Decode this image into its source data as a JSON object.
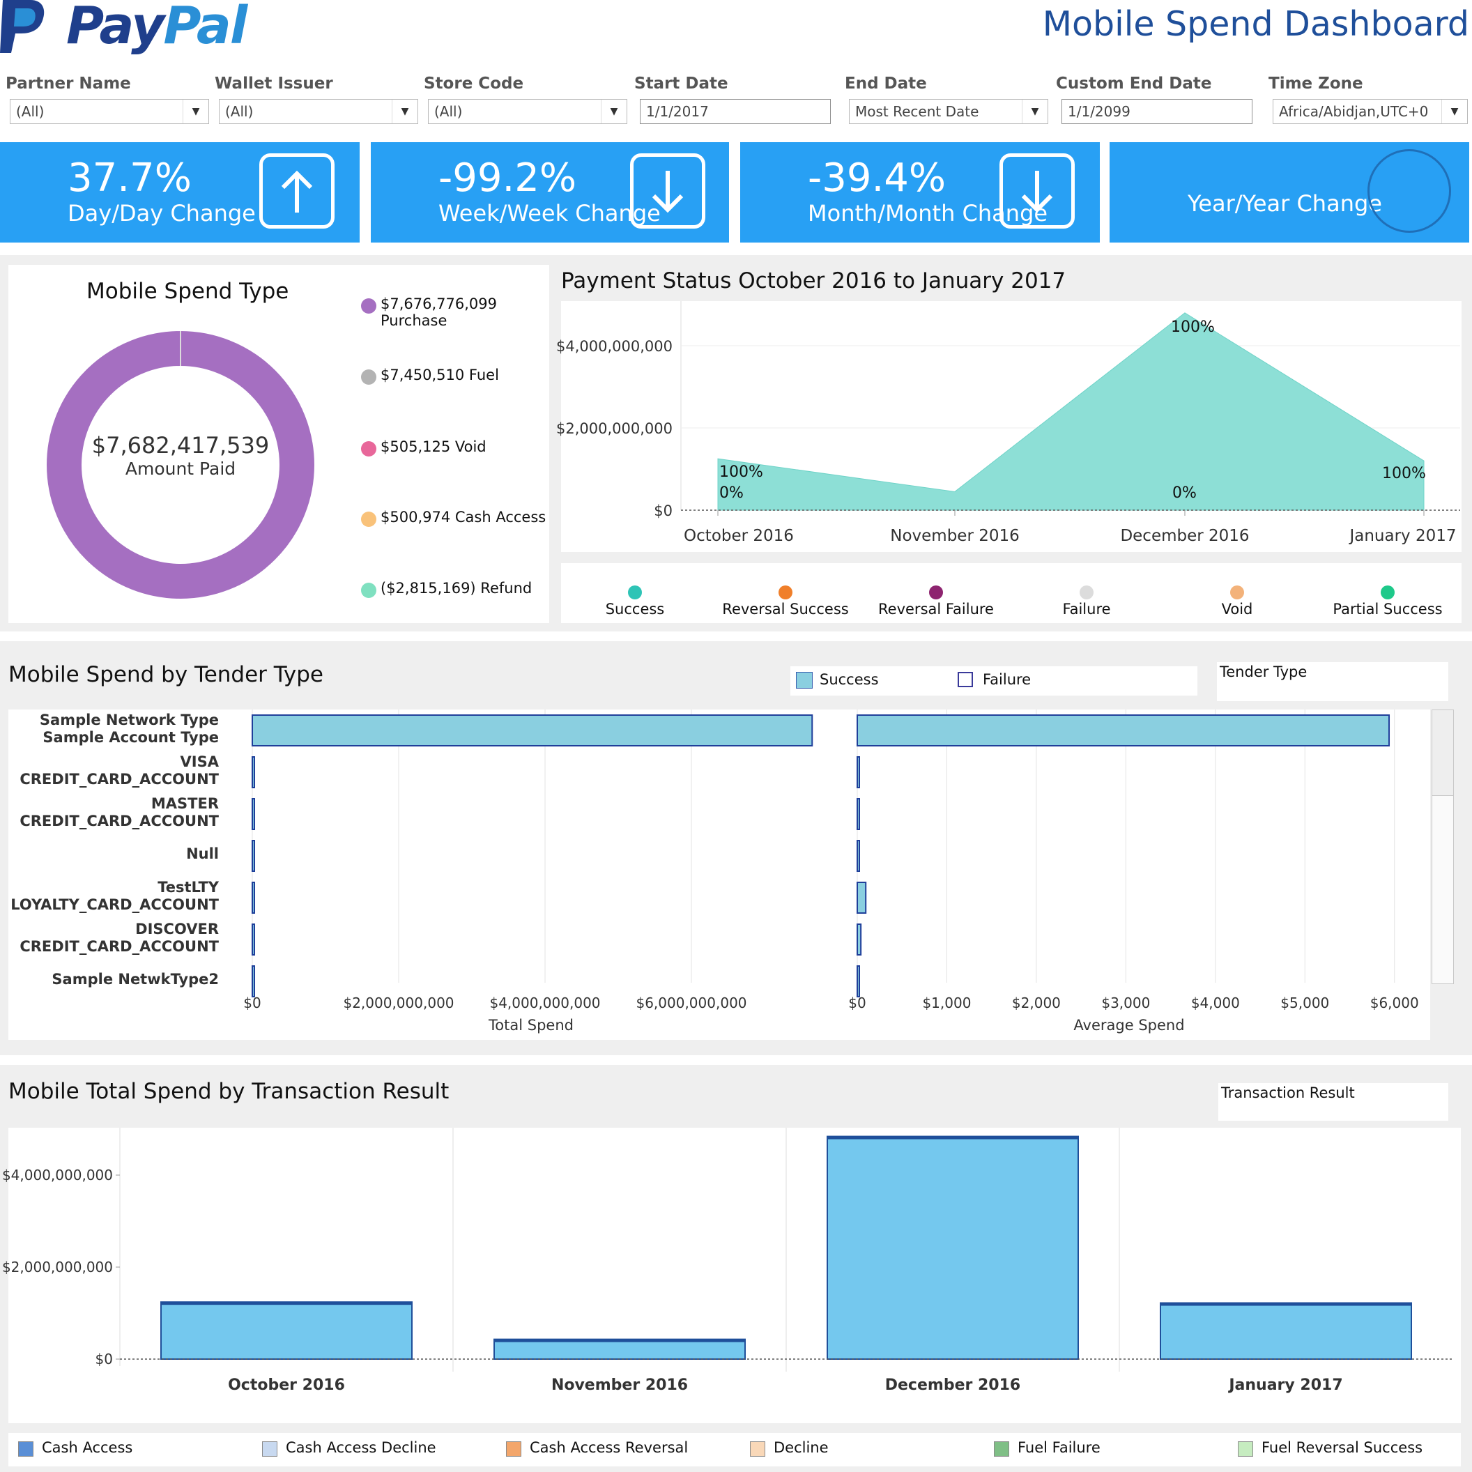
{
  "header": {
    "logo_pay": "Pay",
    "logo_pal": "Pal",
    "title": "Mobile Spend Dashboard"
  },
  "filters": [
    {
      "label": "Partner Name",
      "value": "(All)",
      "type": "dropdown"
    },
    {
      "label": "Wallet Issuer",
      "value": "(All)",
      "type": "dropdown"
    },
    {
      "label": "Store Code",
      "value": "(All)",
      "type": "dropdown"
    },
    {
      "label": "Start Date",
      "value": "1/1/2017",
      "type": "input"
    },
    {
      "label": "End Date",
      "value": "Most Recent Date",
      "type": "dropdown"
    },
    {
      "label": "Custom End Date",
      "value": "1/1/2099",
      "type": "input"
    },
    {
      "label": "Time Zone",
      "value": "Africa/Abidjan,UTC+0",
      "type": "dropdown"
    }
  ],
  "kpis": [
    {
      "value": "37.7%",
      "label": "Day/Day Change",
      "direction": "up-arrow-icon"
    },
    {
      "value": "-99.2%",
      "label": "Week/Week Change",
      "direction": "down-arrow-icon"
    },
    {
      "value": "-39.4%",
      "label": "Month/Month Change",
      "direction": "down-arrow-icon"
    },
    {
      "value": "",
      "label": "Year/Year Change",
      "direction": "circle-icon"
    }
  ],
  "spend_type": {
    "title": "Mobile Spend Type",
    "center_value": "$7,682,417,539",
    "center_label": "Amount Paid",
    "legend": [
      {
        "label": "$7,676,776,099 Purchase",
        "color": "#a56fc1"
      },
      {
        "label": "$7,450,510 Fuel",
        "color": "#b3b3b3"
      },
      {
        "label": "$505,125 Void",
        "color": "#e8679a"
      },
      {
        "label": "$500,974 Cash Access",
        "color": "#f9c27a"
      },
      {
        "label": "($2,815,169) Refund",
        "color": "#7fe0c0"
      }
    ]
  },
  "payment_status": {
    "title": "Payment Status October 2016 to January 2017",
    "legend": [
      {
        "label": "Success",
        "color": "#2ec4b6"
      },
      {
        "label": "Reversal Success",
        "color": "#f07f2a"
      },
      {
        "label": "Reversal Failure",
        "color": "#8e2470"
      },
      {
        "label": "Failure",
        "color": "#dcdcdc"
      },
      {
        "label": "Void",
        "color": "#f3b27a"
      },
      {
        "label": "Partial Success",
        "color": "#1ec98a"
      }
    ]
  },
  "tender": {
    "title": "Mobile Spend by Tender Type",
    "legend": [
      {
        "label": "Success",
        "color": "#8acfe0"
      },
      {
        "label": "Failure",
        "color": "#ffffff"
      }
    ],
    "filter_label": "Tender Type",
    "rows": [
      {
        "line1": "Sample Network Type",
        "line2": "Sample Account Type"
      },
      {
        "line1": "VISA",
        "line2": "CREDIT_CARD_ACCOUNT"
      },
      {
        "line1": "MASTER",
        "line2": "CREDIT_CARD_ACCOUNT"
      },
      {
        "line1": "Null",
        "line2": ""
      },
      {
        "line1": "TestLTY",
        "line2": "LOYALTY_CARD_ACCOUNT"
      },
      {
        "line1": "DISCOVER",
        "line2": "CREDIT_CARD_ACCOUNT"
      },
      {
        "line1": "Sample NetwkType2",
        "line2": ""
      }
    ]
  },
  "transaction": {
    "title": "Mobile Total Spend by Transaction Result",
    "filter_label": "Transaction Result",
    "legend": [
      {
        "label": "Cash Access",
        "color": "#5a8fd6"
      },
      {
        "label": "Cash Access Decline",
        "color": "#c8d9f0"
      },
      {
        "label": "Cash Access Reversal",
        "color": "#f3a66b"
      },
      {
        "label": "Decline",
        "color": "#f9d8b8"
      },
      {
        "label": "Fuel Failure",
        "color": "#7fbf86"
      },
      {
        "label": "Fuel Reversal Success",
        "color": "#c6ecc0"
      }
    ]
  },
  "chart_data": [
    {
      "type": "pie",
      "title": "Mobile Spend Type",
      "categories": [
        "Purchase",
        "Fuel",
        "Void",
        "Cash Access",
        "Refund"
      ],
      "values": [
        7676776099,
        7450510,
        505125,
        500974,
        -2815169
      ]
    },
    {
      "type": "area",
      "title": "Payment Status October 2016 to January 2017",
      "x": [
        "October 2016",
        "November 2016",
        "December 2016",
        "January 2017"
      ],
      "yticks": [
        "$0",
        "$2,000,000,000",
        "$4,000,000,000"
      ],
      "ylim": [
        0,
        5000000000
      ],
      "series": [
        {
          "name": "Success",
          "values": [
            1250000000,
            450000000,
            4800000000,
            1200000000
          ]
        }
      ],
      "annotations": [
        {
          "x": "October 2016",
          "labels": [
            "100%",
            "0%"
          ]
        },
        {
          "x": "December 2016",
          "labels": [
            "100%",
            "0%"
          ]
        },
        {
          "x": "January 2017",
          "labels": [
            "100%"
          ]
        }
      ]
    },
    {
      "type": "bar",
      "title": "Mobile Spend by Tender Type",
      "orientation": "horizontal",
      "categories": [
        "Sample Network Type / Sample Account Type",
        "VISA / CREDIT_CARD_ACCOUNT",
        "MASTER / CREDIT_CARD_ACCOUNT",
        "Null",
        "TestLTY / LOYALTY_CARD_ACCOUNT",
        "DISCOVER / CREDIT_CARD_ACCOUNT",
        "Sample NetwkType2"
      ],
      "panels": [
        {
          "xlabel": "Total Spend",
          "xlim": [
            0,
            8000000000
          ],
          "xticks": [
            "$0",
            "$2,000,000,000",
            "$4,000,000,000",
            "$6,000,000,000"
          ],
          "xtick_values": [
            0,
            2000000000,
            4000000000,
            6000000000
          ],
          "values": [
            7650000000,
            2000000,
            2000000,
            2000000,
            2000000,
            2000000,
            2000000
          ]
        },
        {
          "xlabel": "Average Spend",
          "xlim": [
            0,
            6150
          ],
          "xticks": [
            "$0",
            "$1,000",
            "$2,000",
            "$3,000",
            "$4,000",
            "$5,000",
            "$6,000"
          ],
          "xtick_values": [
            0,
            1000,
            2000,
            3000,
            4000,
            5000,
            6000
          ],
          "values": [
            5940,
            10,
            10,
            10,
            95,
            40,
            10
          ]
        }
      ]
    },
    {
      "type": "bar",
      "title": "Mobile Total Spend by Transaction Result",
      "categories": [
        "October 2016",
        "November 2016",
        "December 2016",
        "January 2017"
      ],
      "yticks": [
        "$0",
        "$2,000,000,000",
        "$4,000,000,000"
      ],
      "ytick_values": [
        0,
        2000000000,
        4000000000
      ],
      "ylim": [
        0,
        4900000000
      ],
      "values": [
        1240000000,
        430000000,
        4840000000,
        1220000000
      ]
    }
  ]
}
